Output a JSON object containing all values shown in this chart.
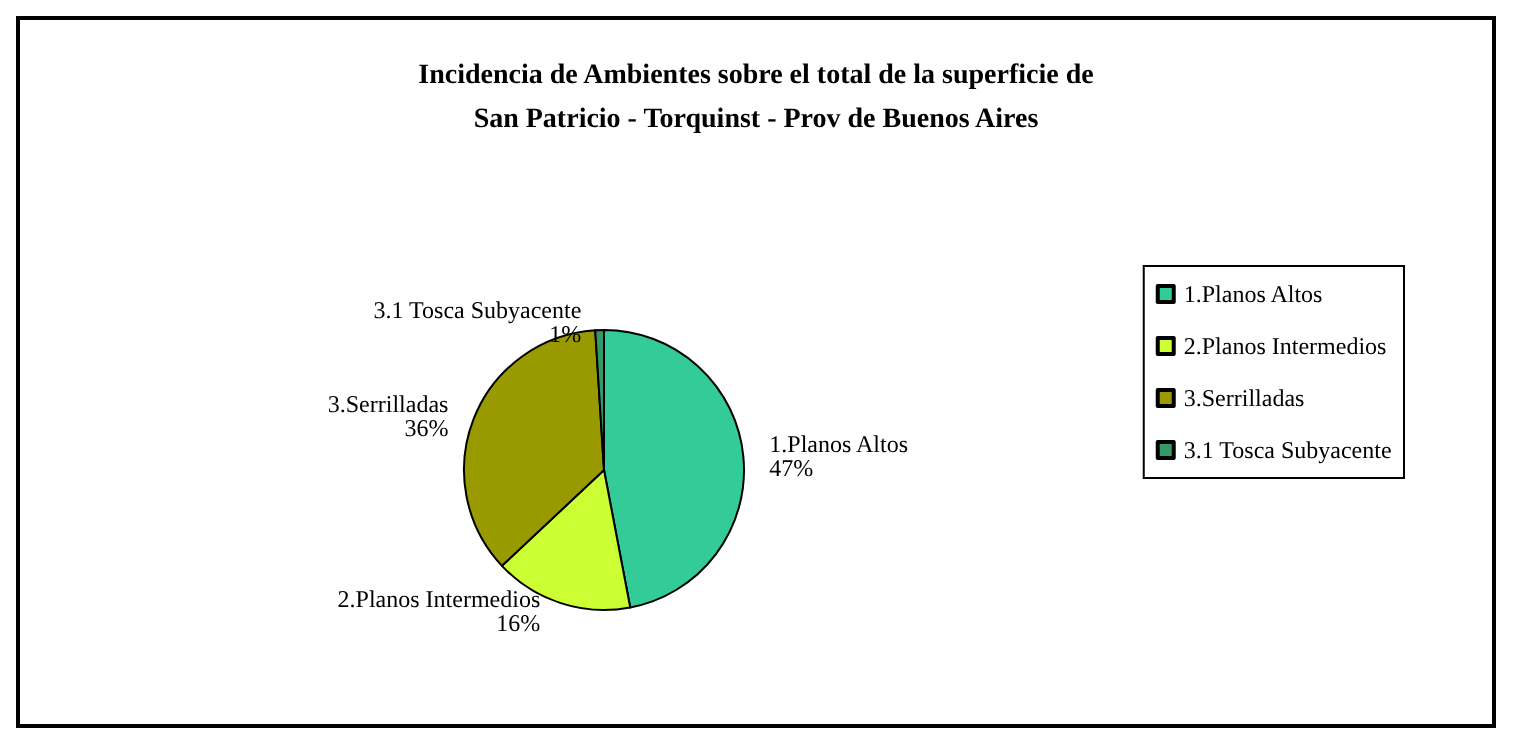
{
  "chart_data": {
    "type": "pie",
    "title": "Incidencia de Ambientes sobre el total de la superficie de\nSan Patricio - Torquinst - Prov de Buenos Aires",
    "categories": [
      "1.Planos Altos",
      "2.Planos Intermedios",
      "3.Serrilladas",
      "3.1 Tosca Subyacente"
    ],
    "values": [
      47,
      16,
      36,
      1
    ],
    "colors": [
      "#33cc99",
      "#ccff33",
      "#999900",
      "#339966"
    ],
    "value_labels": [
      "47%",
      "16%",
      "36%",
      "1%"
    ],
    "legend": "right"
  }
}
